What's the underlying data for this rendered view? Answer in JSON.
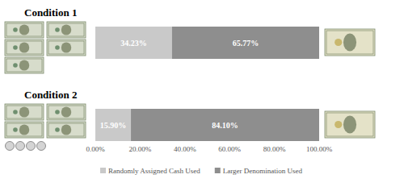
{
  "chart_data": {
    "type": "bar",
    "orientation": "horizontal",
    "stacked": true,
    "categories": [
      "Condition 1",
      "Condition 2"
    ],
    "series": [
      {
        "name": "Randomly Assigned Cash Used",
        "color": "#c9c9c9",
        "values": [
          34.23,
          15.9
        ],
        "value_labels": [
          "34.23%",
          "15.90%"
        ]
      },
      {
        "name": "Larger Denomination Used",
        "color": "#8e8e8e",
        "values": [
          65.77,
          84.1
        ],
        "value_labels": [
          "65.77%",
          "84.10%"
        ]
      }
    ],
    "xlim": [
      0,
      100
    ],
    "xticks": [
      {
        "value": 0,
        "label": "0.00%"
      },
      {
        "value": 20,
        "label": "20.00%"
      },
      {
        "value": 40,
        "label": "40.00%"
      },
      {
        "value": 60,
        "label": "60.00%"
      },
      {
        "value": 80,
        "label": "80.00%"
      },
      {
        "value": 100,
        "label": "100.00%"
      }
    ],
    "grid": false,
    "data_labels": true,
    "legend": "bottom"
  }
}
